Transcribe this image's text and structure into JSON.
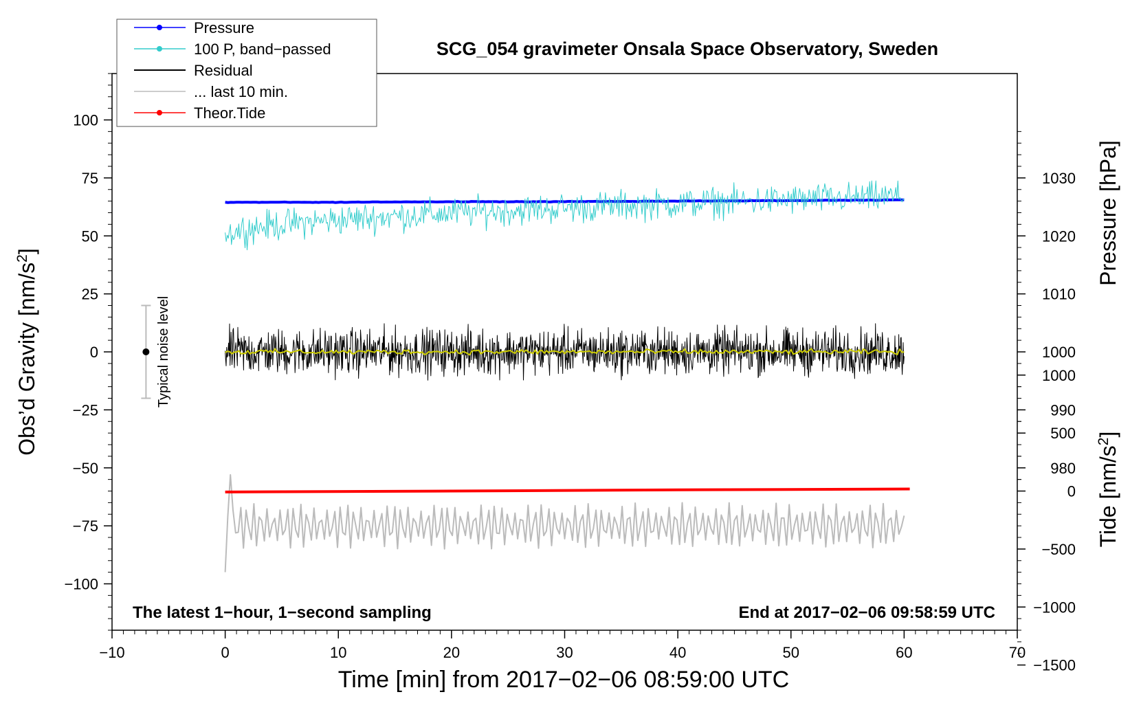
{
  "chart_data": {
    "type": "line",
    "title": "SCG_054 gravimeter Onsala Space Observatory, Sweden",
    "xlabel": "Time [min] from 2017−02−06 08:59:00 UTC",
    "ylabel_left": "Obs’d Gravity [nm/s",
    "ylabel_left_sup": "2",
    "ylabel_left_end": "]",
    "ylabel_right_pressure": "Pressure [hPa]",
    "ylabel_right_tide": "Tide [nm/s",
    "ylabel_right_tide_sup": "2",
    "ylabel_right_tide_end": "]",
    "xlim": [
      -10,
      70
    ],
    "ylim_left": [
      -120,
      120
    ],
    "pressure_axis": {
      "ref_left": 0,
      "ref_value": 1000,
      "per_hpa": 2.5
    },
    "tide_axis": {
      "ref_left": -60,
      "ref_value": 0,
      "per_unit": 0.05
    },
    "x_ticks": [
      "−10",
      "0",
      "10",
      "20",
      "30",
      "40",
      "50",
      "60",
      "70"
    ],
    "x_tick_values": [
      -10,
      0,
      10,
      20,
      30,
      40,
      50,
      60,
      70
    ],
    "y_left_ticks": [
      "100",
      "75",
      "50",
      "25",
      "0",
      "−25",
      "−50",
      "−75",
      "−100"
    ],
    "y_left_tick_values": [
      100,
      75,
      50,
      25,
      0,
      -25,
      -50,
      -75,
      -100
    ],
    "y_pressure_ticks": [
      "1030",
      "1020",
      "1010",
      "1000",
      "990",
      "980"
    ],
    "y_pressure_tick_values": [
      1030,
      1020,
      1010,
      1000,
      990,
      980
    ],
    "y_tide_ticks": [
      "1000",
      "500",
      "0",
      "−500",
      "−1000",
      "−1500"
    ],
    "y_tide_tick_values": [
      1000,
      500,
      0,
      -500,
      -1000,
      -1500
    ],
    "annotation_left": "The latest 1−hour, 1−second sampling",
    "annotation_right": "End at 2017−02−06 09:58:59 UTC",
    "noise_label": "Typical noise level",
    "noise_bar": {
      "x": -7,
      "center": 0,
      "low": -20,
      "high": 20
    },
    "legend": [
      {
        "label": "Pressure",
        "color": "#0000ff",
        "marker": true
      },
      {
        "label": "100 P, band−passed",
        "color": "#33cccc",
        "marker": true
      },
      {
        "label": "Residual",
        "color": "#000000",
        "marker": false
      },
      {
        "label": "... last 10 min.",
        "color": "#bbbbbb",
        "marker": false
      },
      {
        "label": "Theor.Tide",
        "color": "#ff0000",
        "marker": true
      }
    ],
    "series": [
      {
        "name": "Pressure",
        "color": "#0000ff",
        "unit": "hPa",
        "x": [
          0,
          10,
          20,
          30,
          40,
          50,
          60
        ],
        "values": [
          1025.8,
          1025.8,
          1025.9,
          1025.9,
          1026.0,
          1026.1,
          1026.2
        ]
      },
      {
        "name": "100 P, band−passed",
        "color": "#33cccc",
        "unit": "nm/s2",
        "x_range": [
          0,
          60
        ],
        "trend_start": 50,
        "trend_end": 67,
        "amplitude": 6
      },
      {
        "name": "Residual",
        "color": "#000000",
        "unit": "nm/s2",
        "x_range": [
          0,
          60
        ],
        "trend_start": 0,
        "trend_end": 0,
        "amplitude": 9
      },
      {
        "name": "Smoothed residual",
        "color": "#cccc00",
        "unit": "nm/s2",
        "x_range": [
          0,
          60
        ],
        "trend_start": 0,
        "trend_end": 0,
        "amplitude": 1
      },
      {
        "name": "... last 10 min.",
        "color": "#bbbbbb",
        "unit": "nm/s2",
        "x_range": [
          0,
          60
        ],
        "center": -75,
        "amplitude": 10
      },
      {
        "name": "Theor.Tide",
        "color": "#ff0000",
        "unit": "nm/s2",
        "x": [
          0,
          20,
          40,
          60.5
        ],
        "values": [
          -8,
          0,
          10,
          18
        ]
      }
    ]
  }
}
